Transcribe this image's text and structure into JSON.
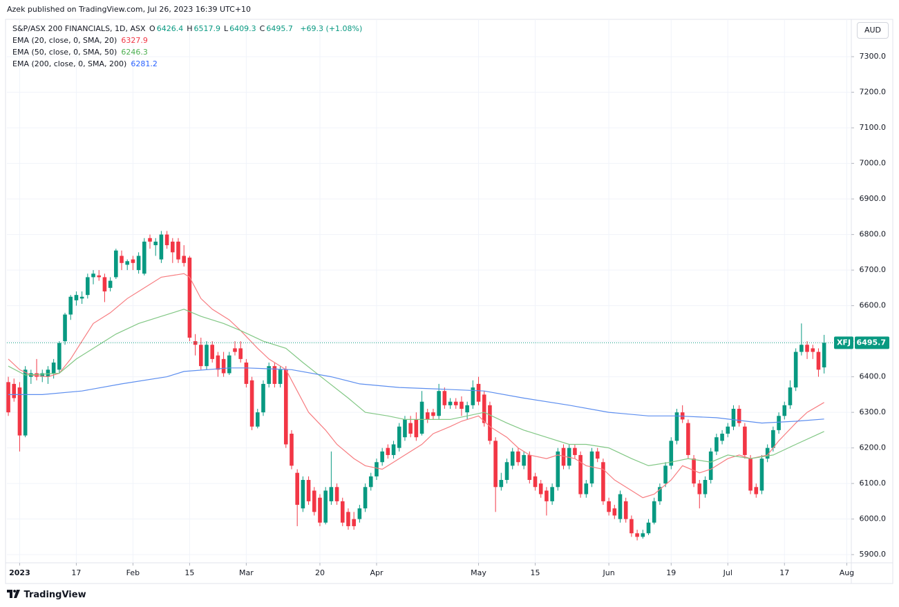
{
  "header": {
    "published": "Azek published on TradingView.com, Jul 26, 2023 16:39 UTC+10",
    "brand": "TradingView",
    "currency": "AUD"
  },
  "chart_data": {
    "type": "candlestick",
    "symbol": "S&P/ASX 200 FINANCIALS, 1D, ASX",
    "ticker": "XFJ",
    "ohlc_labels": [
      "O",
      "H",
      "L",
      "C"
    ],
    "change": "+69.3 (+1.08%)",
    "up_color": "#089981",
    "down_color": "#f23645",
    "grid": true,
    "candles": [
      [
        6385,
        6400,
        6290,
        6300
      ],
      [
        6380,
        6395,
        6330,
        6340
      ],
      [
        6370,
        6385,
        6190,
        6235
      ],
      [
        6235,
        6430,
        6230,
        6420
      ],
      [
        6400,
        6420,
        6380,
        6410
      ],
      [
        6410,
        6450,
        6390,
        6400
      ],
      [
        6400,
        6420,
        6385,
        6410
      ],
      [
        6400,
        6430,
        6380,
        6420
      ],
      [
        6410,
        6450,
        6395,
        6440
      ],
      [
        6420,
        6500,
        6410,
        6495
      ],
      [
        6500,
        6580,
        6490,
        6575
      ],
      [
        6575,
        6630,
        6560,
        6625
      ],
      [
        6615,
        6640,
        6600,
        6630
      ],
      [
        6620,
        6640,
        6605,
        6625
      ],
      [
        6630,
        6690,
        6620,
        6680
      ],
      [
        6680,
        6700,
        6660,
        6690
      ],
      [
        6685,
        6700,
        6670,
        6680
      ],
      [
        6680,
        6690,
        6610,
        6640
      ],
      [
        6650,
        6680,
        6640,
        6670
      ],
      [
        6680,
        6760,
        6675,
        6755
      ],
      [
        6740,
        6755,
        6700,
        6720
      ],
      [
        6715,
        6730,
        6700,
        6725
      ],
      [
        6730,
        6740,
        6700,
        6720
      ],
      [
        6700,
        6750,
        6690,
        6740
      ],
      [
        6690,
        6790,
        6685,
        6780
      ],
      [
        6790,
        6800,
        6760,
        6780
      ],
      [
        6770,
        6790,
        6740,
        6780
      ],
      [
        6730,
        6810,
        6720,
        6800
      ],
      [
        6800,
        6810,
        6760,
        6770
      ],
      [
        6780,
        6790,
        6720,
        6750
      ],
      [
        6780,
        6790,
        6720,
        6730
      ],
      [
        6740,
        6770,
        6710,
        6720
      ],
      [
        6735,
        6740,
        6500,
        6510
      ],
      [
        6500,
        6520,
        6460,
        6490
      ],
      [
        6490,
        6510,
        6420,
        6430
      ],
      [
        6430,
        6500,
        6420,
        6490
      ],
      [
        6490,
        6500,
        6440,
        6450
      ],
      [
        6460,
        6470,
        6400,
        6420
      ],
      [
        6450,
        6470,
        6400,
        6410
      ],
      [
        6410,
        6470,
        6405,
        6460
      ],
      [
        6480,
        6500,
        6460,
        6470
      ],
      [
        6480,
        6500,
        6440,
        6450
      ],
      [
        6440,
        6450,
        6370,
        6380
      ],
      [
        6390,
        6400,
        6250,
        6260
      ],
      [
        6260,
        6310,
        6255,
        6300
      ],
      [
        6300,
        6390,
        6290,
        6380
      ],
      [
        6380,
        6440,
        6370,
        6430
      ],
      [
        6430,
        6440,
        6370,
        6380
      ],
      [
        6380,
        6430,
        6370,
        6420
      ],
      [
        6420,
        6430,
        6200,
        6210
      ],
      [
        6240,
        6250,
        6140,
        6150
      ],
      [
        6130,
        6140,
        5980,
        6040
      ],
      [
        6030,
        6120,
        6020,
        6110
      ],
      [
        6110,
        6120,
        6040,
        6050
      ],
      [
        6080,
        6090,
        6010,
        6020
      ],
      [
        6060,
        6070,
        5980,
        5990
      ],
      [
        5990,
        6090,
        5985,
        6080
      ],
      [
        6050,
        6190,
        6040,
        6090
      ],
      [
        6090,
        6100,
        6040,
        6050
      ],
      [
        6050,
        6060,
        5980,
        5990
      ],
      [
        6020,
        6030,
        5970,
        5980
      ],
      [
        6000,
        6020,
        5970,
        5980
      ],
      [
        6000,
        6040,
        5990,
        6030
      ],
      [
        6030,
        6100,
        6020,
        6090
      ],
      [
        6090,
        6130,
        6080,
        6120
      ],
      [
        6120,
        6170,
        6110,
        6160
      ],
      [
        6160,
        6200,
        6150,
        6190
      ],
      [
        6200,
        6210,
        6170,
        6180
      ],
      [
        6180,
        6220,
        6170,
        6210
      ],
      [
        6200,
        6270,
        6190,
        6260
      ],
      [
        6230,
        6290,
        6220,
        6280
      ],
      [
        6270,
        6290,
        6230,
        6240
      ],
      [
        6280,
        6300,
        6220,
        6230
      ],
      [
        6240,
        6360,
        6235,
        6330
      ],
      [
        6300,
        6310,
        6270,
        6280
      ],
      [
        6300,
        6310,
        6280,
        6290
      ],
      [
        6290,
        6380,
        6280,
        6360
      ],
      [
        6360,
        6370,
        6310,
        6320
      ],
      [
        6320,
        6340,
        6310,
        6330
      ],
      [
        6330,
        6340,
        6310,
        6320
      ],
      [
        6330,
        6345,
        6290,
        6310
      ],
      [
        6300,
        6330,
        6280,
        6320
      ],
      [
        6320,
        6390,
        6310,
        6370
      ],
      [
        6380,
        6400,
        6320,
        6330
      ],
      [
        6350,
        6360,
        6260,
        6270
      ],
      [
        6320,
        6330,
        6210,
        6220
      ],
      [
        6220,
        6230,
        6020,
        6090
      ],
      [
        6090,
        6130,
        6080,
        6110
      ],
      [
        6110,
        6170,
        6100,
        6160
      ],
      [
        6150,
        6200,
        6140,
        6190
      ],
      [
        6190,
        6200,
        6150,
        6160
      ],
      [
        6150,
        6190,
        6140,
        6180
      ],
      [
        6180,
        6190,
        6100,
        6110
      ],
      [
        6120,
        6130,
        6080,
        6090
      ],
      [
        6100,
        6110,
        6060,
        6070
      ],
      [
        6080,
        6090,
        6010,
        6050
      ],
      [
        6050,
        6100,
        6040,
        6090
      ],
      [
        6090,
        6200,
        6080,
        6190
      ],
      [
        6200,
        6210,
        6140,
        6150
      ],
      [
        6150,
        6210,
        6140,
        6200
      ],
      [
        6200,
        6210,
        6170,
        6180
      ],
      [
        6180,
        6190,
        6060,
        6070
      ],
      [
        6070,
        6110,
        6060,
        6100
      ],
      [
        6100,
        6200,
        6090,
        6190
      ],
      [
        6190,
        6200,
        6160,
        6170
      ],
      [
        6160,
        6170,
        6040,
        6050
      ],
      [
        6050,
        6060,
        6010,
        6020
      ],
      [
        6030,
        6040,
        6000,
        6010
      ],
      [
        6000,
        6080,
        5990,
        6070
      ],
      [
        6050,
        6060,
        5990,
        6000
      ],
      [
        6000,
        6010,
        5950,
        5960
      ],
      [
        5960,
        5970,
        5940,
        5950
      ],
      [
        5950,
        5970,
        5945,
        5960
      ],
      [
        5960,
        6000,
        5955,
        5990
      ],
      [
        5990,
        6060,
        5985,
        6050
      ],
      [
        6050,
        6100,
        6040,
        6090
      ],
      [
        6100,
        6160,
        6090,
        6150
      ],
      [
        6150,
        6230,
        6140,
        6220
      ],
      [
        6220,
        6310,
        6210,
        6300
      ],
      [
        6300,
        6320,
        6270,
        6280
      ],
      [
        6270,
        6280,
        6170,
        6180
      ],
      [
        6170,
        6180,
        6090,
        6100
      ],
      [
        6100,
        6110,
        6030,
        6070
      ],
      [
        6070,
        6120,
        6060,
        6110
      ],
      [
        6110,
        6200,
        6100,
        6190
      ],
      [
        6190,
        6240,
        6180,
        6230
      ],
      [
        6220,
        6250,
        6210,
        6240
      ],
      [
        6240,
        6270,
        6230,
        6260
      ],
      [
        6260,
        6320,
        6250,
        6310
      ],
      [
        6310,
        6320,
        6260,
        6270
      ],
      [
        6260,
        6270,
        6170,
        6180
      ],
      [
        6170,
        6180,
        6070,
        6080
      ],
      [
        6090,
        6100,
        6060,
        6070
      ],
      [
        6080,
        6180,
        6070,
        6170
      ],
      [
        6170,
        6210,
        6160,
        6200
      ],
      [
        6200,
        6260,
        6190,
        6250
      ],
      [
        6250,
        6300,
        6240,
        6290
      ],
      [
        6290,
        6330,
        6280,
        6320
      ],
      [
        6320,
        6390,
        6310,
        6370
      ],
      [
        6370,
        6480,
        6360,
        6470
      ],
      [
        6470,
        6550,
        6460,
        6490
      ],
      [
        6490,
        6500,
        6450,
        6470
      ],
      [
        6480,
        6490,
        6450,
        6470
      ],
      [
        6470,
        6480,
        6400,
        6420
      ],
      [
        6426.4,
        6517.9,
        6409.3,
        6495.7
      ]
    ],
    "lines": [
      {
        "name": "EMA (20, close, 0, SMA, 20)",
        "color": "#f77c80",
        "x": [
          0,
          2,
          4,
          7,
          9,
          11,
          13,
          15,
          18,
          21,
          24,
          27,
          31,
          32,
          34,
          36,
          39,
          41,
          44,
          46,
          49,
          51,
          53,
          56,
          58,
          61,
          63,
          66,
          68,
          70,
          73,
          75,
          78,
          80,
          83,
          85,
          88,
          90,
          92,
          95,
          97,
          100,
          102,
          105,
          107,
          110,
          112,
          114,
          117,
          119,
          122,
          124,
          127,
          129,
          131,
          134,
          136,
          139,
          141,
          144
        ],
        "values": [
          6450,
          6420,
          6405,
          6400,
          6410,
          6450,
          6500,
          6550,
          6580,
          6620,
          6650,
          6680,
          6690,
          6680,
          6620,
          6590,
          6560,
          6530,
          6480,
          6450,
          6420,
          6360,
          6300,
          6250,
          6210,
          6170,
          6150,
          6140,
          6160,
          6180,
          6210,
          6240,
          6260,
          6275,
          6290,
          6260,
          6230,
          6200,
          6180,
          6170,
          6180,
          6170,
          6150,
          6140,
          6110,
          6080,
          6060,
          6070,
          6110,
          6150,
          6130,
          6140,
          6170,
          6180,
          6170,
          6180,
          6220,
          6270,
          6300,
          6327.9
        ]
      },
      {
        "name": "EMA (50, close, 0, SMA, 50)",
        "color": "#81c784",
        "x": [
          0,
          3,
          9,
          12,
          16,
          19,
          23,
          27,
          31,
          34,
          38,
          41,
          45,
          49,
          52,
          56,
          60,
          63,
          67,
          70,
          74,
          78,
          81,
          84,
          88,
          91,
          95,
          99,
          102,
          106,
          110,
          113,
          117,
          120,
          124,
          127,
          131,
          135,
          139,
          144
        ],
        "values": [
          6430,
          6405,
          6410,
          6450,
          6490,
          6520,
          6550,
          6570,
          6590,
          6570,
          6550,
          6530,
          6500,
          6480,
          6440,
          6390,
          6340,
          6300,
          6290,
          6280,
          6280,
          6280,
          6290,
          6300,
          6270,
          6250,
          6230,
          6210,
          6210,
          6200,
          6170,
          6150,
          6160,
          6170,
          6160,
          6180,
          6170,
          6180,
          6210,
          6246.3
        ]
      },
      {
        "name": "EMA (200, close, 0, SMA, 200)",
        "color": "#5b8def",
        "x": [
          0,
          6,
          13,
          20,
          28,
          31,
          39,
          42,
          50,
          57,
          62,
          69,
          77,
          84,
          91,
          99,
          106,
          113,
          118,
          125,
          133,
          139,
          144
        ],
        "values": [
          6350,
          6350,
          6360,
          6380,
          6400,
          6415,
          6425,
          6425,
          6420,
          6400,
          6380,
          6370,
          6365,
          6360,
          6340,
          6320,
          6300,
          6290,
          6290,
          6285,
          6270,
          6275,
          6281.2
        ]
      }
    ],
    "legend_value_colors": [
      "#f23645",
      "#4caf50",
      "#2962ff"
    ],
    "xlim": [
      -0.25,
      148.8
    ],
    "xticks": [
      {
        "value": 2,
        "label": "2023"
      },
      {
        "value": 12,
        "label": "17"
      },
      {
        "value": 22,
        "label": "Feb"
      },
      {
        "value": 32,
        "label": "15"
      },
      {
        "value": 42,
        "label": "Mar"
      },
      {
        "value": 55,
        "label": "20"
      },
      {
        "value": 65,
        "label": "Apr"
      },
      {
        "value": 83,
        "label": "May"
      },
      {
        "value": 93,
        "label": "15"
      },
      {
        "value": 106,
        "label": "Jun"
      },
      {
        "value": 117,
        "label": "19"
      },
      {
        "value": 127,
        "label": "Jul"
      },
      {
        "value": 137,
        "label": "17"
      },
      {
        "value": 148,
        "label": "Aug"
      }
    ],
    "ylim": [
      5877,
      7405
    ],
    "yticks": [
      {
        "value": 5900,
        "label": "5900.0"
      },
      {
        "value": 6000,
        "label": "6000.0"
      },
      {
        "value": 6100,
        "label": "6100.0"
      },
      {
        "value": 6200,
        "label": "6200.0"
      },
      {
        "value": 6300,
        "label": "6300.0"
      },
      {
        "value": 6400,
        "label": "6400.0"
      },
      {
        "value": 6500,
        "label": "6500.0"
      },
      {
        "value": 6600,
        "label": "6600.0"
      },
      {
        "value": 6700,
        "label": "6700.0"
      },
      {
        "value": 6800,
        "label": "6800.0"
      },
      {
        "value": 6900,
        "label": "6900.0"
      },
      {
        "value": 7000,
        "label": "7000.0"
      },
      {
        "value": 7100,
        "label": "7100.0"
      },
      {
        "value": 7200,
        "label": "7200.0"
      },
      {
        "value": 7300,
        "label": "7300.0"
      }
    ]
  }
}
